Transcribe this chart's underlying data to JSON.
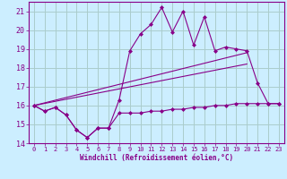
{
  "background_color": "#cceeff",
  "grid_color": "#aacccc",
  "line_color": "#880088",
  "xlabel": "Windchill (Refroidissement éolien,°C)",
  "xlim": [
    -0.5,
    23.5
  ],
  "ylim": [
    14,
    21.5
  ],
  "yticks": [
    14,
    15,
    16,
    17,
    18,
    19,
    20,
    21
  ],
  "xticks": [
    0,
    1,
    2,
    3,
    4,
    5,
    6,
    7,
    8,
    9,
    10,
    11,
    12,
    13,
    14,
    15,
    16,
    17,
    18,
    19,
    20,
    21,
    22,
    23
  ],
  "series_jagged_x": [
    0,
    1,
    2,
    3,
    4,
    5,
    6,
    7,
    8,
    9,
    10,
    11,
    12,
    13,
    14,
    15,
    16,
    17,
    18,
    19,
    20,
    21,
    22,
    23
  ],
  "series_jagged_y": [
    16.0,
    15.7,
    15.9,
    15.5,
    14.7,
    14.3,
    14.8,
    14.8,
    16.3,
    18.9,
    19.8,
    20.3,
    21.2,
    19.9,
    21.0,
    19.2,
    20.7,
    18.9,
    19.1,
    19.0,
    18.9,
    17.2,
    16.1,
    16.1
  ],
  "series_bottom_x": [
    0,
    1,
    2,
    3,
    4,
    5,
    6,
    7,
    8,
    9,
    10,
    11,
    12,
    13,
    14,
    15,
    16,
    17,
    18,
    19,
    20,
    21,
    22,
    23
  ],
  "series_bottom_y": [
    16.0,
    15.7,
    15.9,
    15.5,
    14.7,
    14.3,
    14.8,
    14.8,
    15.6,
    15.6,
    15.6,
    15.7,
    15.7,
    15.8,
    15.8,
    15.9,
    15.9,
    16.0,
    16.0,
    16.1,
    16.1,
    16.1,
    16.1,
    16.1
  ],
  "series_trend1_x": [
    0,
    20
  ],
  "series_trend1_y": [
    16.0,
    18.8
  ],
  "series_trend2_x": [
    0,
    20
  ],
  "series_trend2_y": [
    16.0,
    18.2
  ]
}
